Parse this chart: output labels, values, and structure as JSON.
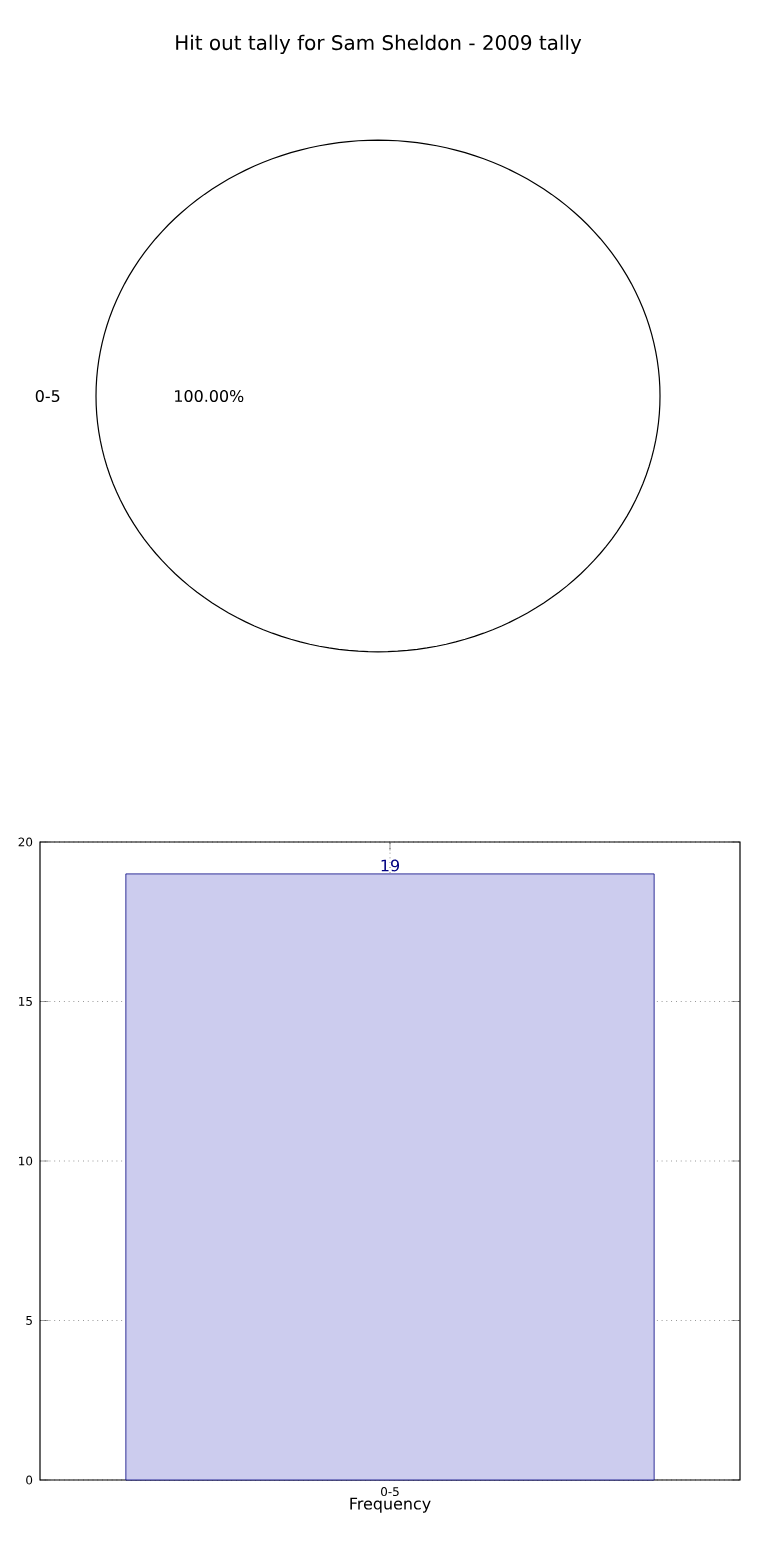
{
  "chart_data": [
    {
      "type": "pie",
      "title": "Hit out tally for Sam Sheldon - 2009 tally",
      "categories": [
        "0-5"
      ],
      "values": [
        100
      ],
      "colors": [
        "#ffffff"
      ],
      "value_labels": [
        "100.00%"
      ]
    },
    {
      "type": "bar",
      "categories": [
        "0-5"
      ],
      "values": [
        19
      ],
      "color": "#ccccee",
      "xlabel": "Frequency",
      "ylim": [
        0,
        20
      ],
      "yticks": [
        0,
        5,
        10,
        15,
        20
      ],
      "grid": true,
      "data_labels": true
    }
  ]
}
